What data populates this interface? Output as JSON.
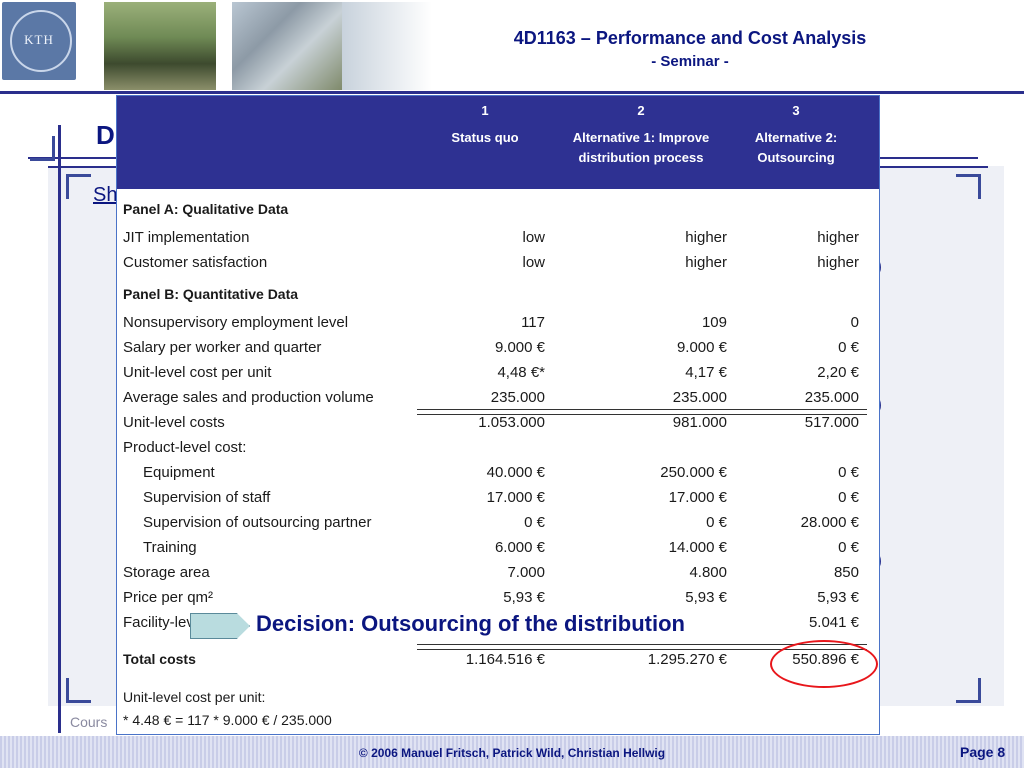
{
  "header": {
    "logo_text": "KTH",
    "title": "4D1163 – Performance and Cost Analysis",
    "subtitle": "- Seminar -"
  },
  "background": {
    "title_fragment": "D",
    "link_fragment": "Sh",
    "course_fragment": "Cours"
  },
  "table": {
    "columns": [
      {
        "num": "1",
        "title": "Status quo"
      },
      {
        "num": "2",
        "title": "Alternative 1: Improve distribution process"
      },
      {
        "num": "3",
        "title": "Alternative 2: Outsourcing"
      }
    ],
    "panel_a": "Panel A: Qualitative Data",
    "panel_b": "Panel B: Quantitative Data",
    "rows": [
      {
        "label": "JIT implementation",
        "values": [
          "low",
          "higher",
          "higher"
        ]
      },
      {
        "label": "Customer satisfaction",
        "values": [
          "low",
          "higher",
          "higher"
        ]
      },
      {
        "label": "Nonsupervisory employment level",
        "values": [
          "117",
          "109",
          "0"
        ]
      },
      {
        "label": "Salary per worker and quarter",
        "values": [
          "9.000 €",
          "9.000 €",
          "0 €"
        ]
      },
      {
        "label": "Unit-level cost per unit",
        "values": [
          "4,48 €*",
          "4,17 €",
          "2,20 €"
        ]
      },
      {
        "label": "Average sales and production volume",
        "values": [
          "235.000",
          "235.000",
          "235.000"
        ]
      },
      {
        "label": "Unit-level costs",
        "values": [
          "1.053.000",
          "981.000",
          "517.000"
        ]
      },
      {
        "label": "Product-level cost:",
        "values": [
          "",
          "",
          ""
        ]
      },
      {
        "label": "Equipment",
        "values": [
          "40.000 €",
          "250.000 €",
          "0 €"
        ]
      },
      {
        "label": "Supervision of staff",
        "values": [
          "17.000 €",
          "17.000 €",
          "0 €"
        ]
      },
      {
        "label": "Supervision of outsourcing partner",
        "values": [
          "0 €",
          "0 €",
          "28.000 €"
        ]
      },
      {
        "label": "Training",
        "values": [
          "6.000 €",
          "14.000 €",
          "0 €"
        ]
      },
      {
        "label": "Storage area",
        "values": [
          "7.000",
          "4.800",
          "850"
        ]
      },
      {
        "label": "Price per qm²",
        "values": [
          "5,93 €",
          "5,93 €",
          "5,93 €"
        ]
      },
      {
        "label": "Facility-lev",
        "values": [
          "",
          "",
          "5.041 €"
        ]
      },
      {
        "label": "Total costs",
        "values": [
          "1.164.516 €",
          "1.295.270 €",
          "550.896 €"
        ]
      }
    ],
    "footnote_label": "Unit-level cost per unit:",
    "footnote_formula": "* 4.48 € = 117 * 9.000 € / 235.000"
  },
  "callout": {
    "decision": "Decision: Outsourcing of the distribution"
  },
  "footer": {
    "copyright": "© 2006 Manuel Fritsch, Patrick Wild, Christian Hellwig",
    "page": "Page 8"
  }
}
